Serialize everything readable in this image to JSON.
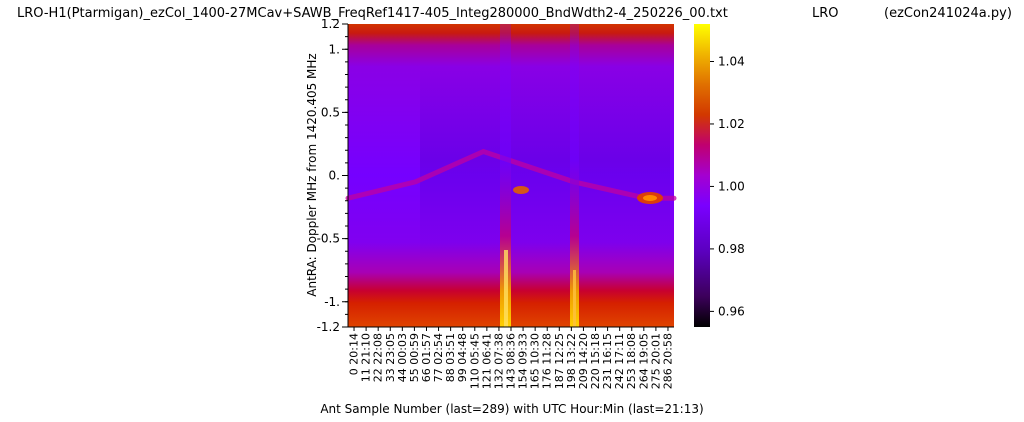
{
  "header": {
    "file_title": "LRO-H1(Ptarmigan)_ezCol_1400-27MCav+SAWB_FreqRef1417-405_Integ280000_BndWdth2-4_250226_00.txt",
    "site": "LRO",
    "program": "(ezCon241024a.py)"
  },
  "chart_data": {
    "type": "heatmap",
    "title": "",
    "xlabel": "Ant Sample Number (last=289) with UTC Hour:Min (last=21:13)",
    "ylabel": "AntRA:  Doppler MHz from 1420.405 MHz",
    "x_range": [
      0,
      289
    ],
    "y_range": [
      -1.2,
      1.2
    ],
    "x_tick_labels": [
      "0  20:14",
      "11  21:10",
      "22  22:08",
      "33  23:05",
      "44  00:03",
      "55  00:59",
      "66  01:57",
      "77  02:54",
      "88  03:51",
      "99  04:48",
      "110  05:45",
      "121  06:41",
      "132  07:38",
      "143  08:36",
      "154  09:33",
      "165  10:30",
      "176  11:28",
      "187  12:25",
      "198  13:22",
      "209  14:20",
      "220  15:18",
      "231  16:15",
      "242  17:11",
      "253  18:08",
      "264  19:05",
      "275  20:01",
      "286  20:58"
    ],
    "y_tick_labels": [
      "1.2",
      "1.",
      "0.5",
      "0.",
      "-0.5",
      "-1.",
      "-1.2"
    ],
    "y_tick_values": [
      1.2,
      1.0,
      0.5,
      0.0,
      -0.5,
      -1.0,
      -1.2
    ],
    "colorbar": {
      "colormap": "gnuplot",
      "range": [
        0.955,
        1.052
      ],
      "tick_labels": [
        "0.96",
        "0.98",
        "1.00",
        "1.02",
        "1.04"
      ],
      "tick_values": [
        0.96,
        0.98,
        1.0,
        1.02,
        1.04
      ]
    },
    "features": [
      {
        "kind": "hot-band",
        "doppler_range": [
          -1.2,
          -0.9
        ],
        "level": 1.01
      },
      {
        "kind": "hot-band",
        "doppler_range": [
          1.05,
          1.2
        ],
        "level": 1.01
      },
      {
        "kind": "vertical-streak",
        "sample": 143,
        "level": 1.04
      },
      {
        "kind": "vertical-streak",
        "sample": 203,
        "level": 1.03
      },
      {
        "kind": "hydrogen-line",
        "points": [
          [
            0,
            -0.18
          ],
          [
            60,
            -0.05
          ],
          [
            120,
            0.19
          ],
          [
            150,
            0.1
          ],
          [
            200,
            -0.05
          ],
          [
            264,
            -0.18
          ],
          [
            289,
            -0.18
          ]
        ]
      }
    ]
  }
}
